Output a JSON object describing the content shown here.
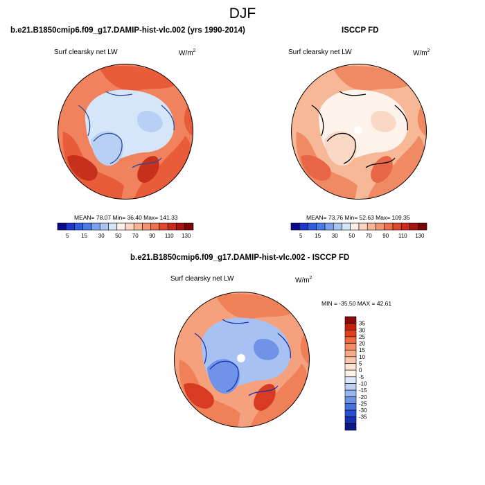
{
  "title": "DJF",
  "panels": [
    {
      "id": "model",
      "title": "b.e21.B1850cmip6.f09_g17.DAMIP-hist-vlc.002 (yrs 1990-2014)",
      "variable": "Surf clearsky net LW",
      "units_base": "W/m",
      "units_exp": "2",
      "stats": "MEAN=  78.07  Min=  36.40  Max= 141.33"
    },
    {
      "id": "obs",
      "title": "ISCCP FD",
      "variable": "Surf clearsky net LW",
      "units_base": "W/m",
      "units_exp": "2",
      "stats": "MEAN=  73.76  Min=  52.63  Max= 109.35"
    },
    {
      "id": "diff",
      "title": "b.e21.B1850cmip6.f09_g17.DAMIP-hist-vlc.002 - ISCCP FD",
      "variable": "Surf clearsky net LW",
      "units_base": "W/m",
      "units_exp": "2",
      "stats": "MIN = -35.50 MAX =  42.61"
    }
  ],
  "colorbar_field": {
    "labels": [
      "5",
      "15",
      "30",
      "50",
      "70",
      "90",
      "110",
      "130"
    ],
    "colors": [
      "#0a0a8c",
      "#1e38cc",
      "#2e5de0",
      "#4a7ce8",
      "#7ca0ef",
      "#a9c3f3",
      "#d6e4f8",
      "#fdf0e6",
      "#f9d5c0",
      "#f5b594",
      "#f19571",
      "#ec704c",
      "#e0482c",
      "#cc2a1a",
      "#a81410",
      "#7a0606"
    ]
  },
  "colorbar_diff": {
    "labels": [
      "35",
      "30",
      "25",
      "20",
      "15",
      "10",
      "5",
      "0",
      "-5",
      "-10",
      "-15",
      "-20",
      "-25",
      "-30",
      "-35"
    ],
    "colors": [
      "#8a0b0b",
      "#c3220f",
      "#e0401c",
      "#ee6a3e",
      "#f38c62",
      "#f6ab87",
      "#f9c8ac",
      "#fce3d3",
      "#fdf3ea",
      "#dde9f9",
      "#bcd0f4",
      "#98b6ee",
      "#6f93e6",
      "#4a72df",
      "#2a50d2",
      "#1530b0",
      "#0a1a80"
    ]
  },
  "maps": {
    "model": {
      "base": "#f0825e",
      "land": "#e85c3a",
      "arctic": "#d6e6fa",
      "ice": "#b7d0f3",
      "hot": "#c8301e",
      "coast": "#2a4a9a"
    },
    "obs": {
      "base": "#f7b898",
      "land": "#f08a64",
      "arctic": "#fdf3ea",
      "ice": "#f9d8c6",
      "hot": "#e86646",
      "coast": "#000000"
    },
    "diff": {
      "base": "#f6a17e",
      "land": "#f08058",
      "arctic": "#a8c1f3",
      "ice": "#6f93e6",
      "hot": "#d83a22",
      "coast": "#1530b0"
    }
  }
}
